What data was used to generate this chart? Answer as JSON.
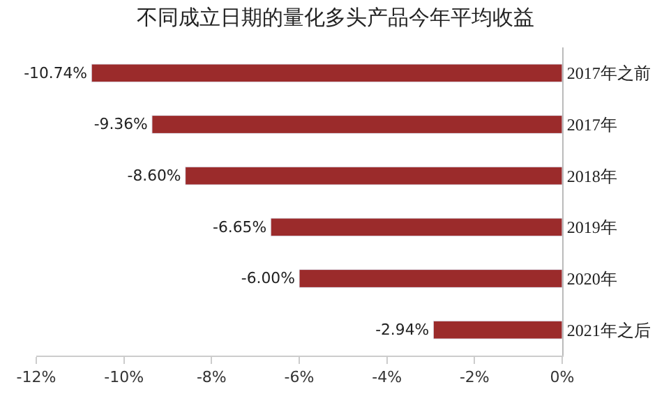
{
  "chart_data": {
    "type": "bar",
    "title": "不同成立日期的量化多头产品今年平均收益",
    "orientation": "horizontal",
    "categories": [
      "2017年之前",
      "2017年",
      "2018年",
      "2019年",
      "2020年",
      "2021年之后"
    ],
    "values": [
      -10.74,
      -9.36,
      -8.6,
      -6.65,
      -6.0,
      -2.94
    ],
    "value_labels": [
      "-10.74%",
      "-9.36%",
      "-8.60%",
      "-6.65%",
      "-6.00%",
      "-2.94%"
    ],
    "color": "#9b2b2b",
    "xlim": [
      -12,
      0
    ],
    "xticks": [
      {
        "value": -12,
        "label": "-12%"
      },
      {
        "value": -10,
        "label": "-10%"
      },
      {
        "value": -8,
        "label": "-8%"
      },
      {
        "value": -6,
        "label": "-6%"
      },
      {
        "value": -4,
        "label": "-4%"
      },
      {
        "value": -2,
        "label": "-2%"
      },
      {
        "value": 0,
        "label": "0%"
      }
    ]
  }
}
